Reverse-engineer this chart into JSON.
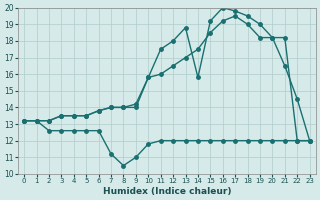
{
  "xlabel": "Humidex (Indice chaleur)",
  "ylabel": "",
  "bg_color": "#d6eaea",
  "grid_color": "#b0cccc",
  "line_color": "#1a7070",
  "xlim": [
    -0.5,
    23.5
  ],
  "ylim": [
    10,
    20
  ],
  "yticks": [
    10,
    11,
    12,
    13,
    14,
    15,
    16,
    17,
    18,
    19,
    20
  ],
  "xticks": [
    0,
    1,
    2,
    3,
    4,
    5,
    6,
    7,
    8,
    9,
    10,
    11,
    12,
    13,
    14,
    15,
    16,
    17,
    18,
    19,
    20,
    21,
    22,
    23
  ],
  "line1_x": [
    0,
    1,
    2,
    3,
    4,
    5,
    6,
    7,
    8,
    9,
    10,
    11,
    12,
    13,
    14,
    15,
    16,
    17,
    18,
    19,
    20,
    21,
    22,
    23
  ],
  "line1_y": [
    13.2,
    13.2,
    12.6,
    12.6,
    12.6,
    12.6,
    12.6,
    11.2,
    10.5,
    11.0,
    11.8,
    12.0,
    12.0,
    12.0,
    12.0,
    12.0,
    12.0,
    12.0,
    12.0,
    12.0,
    12.0,
    12.0,
    12.0,
    12.0
  ],
  "line2_x": [
    0,
    1,
    2,
    3,
    4,
    5,
    6,
    7,
    8,
    9,
    10,
    11,
    12,
    13,
    14,
    15,
    16,
    17,
    18,
    19,
    20,
    21,
    22,
    23
  ],
  "line2_y": [
    13.2,
    13.2,
    13.2,
    13.5,
    13.5,
    13.5,
    13.8,
    14.0,
    14.0,
    14.0,
    15.8,
    16.0,
    16.5,
    17.0,
    17.5,
    18.5,
    19.2,
    19.5,
    19.0,
    18.2,
    18.2,
    18.2,
    12.0,
    12.0
  ],
  "line3_x": [
    0,
    1,
    2,
    3,
    4,
    5,
    6,
    7,
    8,
    9,
    10,
    11,
    12,
    13,
    14,
    15,
    16,
    17,
    18,
    19,
    20,
    21,
    22,
    23
  ],
  "line3_y": [
    13.2,
    13.2,
    13.2,
    13.5,
    13.5,
    13.5,
    13.8,
    14.0,
    14.0,
    14.2,
    15.8,
    17.5,
    18.0,
    18.8,
    15.8,
    19.2,
    20.0,
    19.8,
    19.5,
    19.0,
    18.2,
    16.5,
    14.5,
    12.0
  ]
}
